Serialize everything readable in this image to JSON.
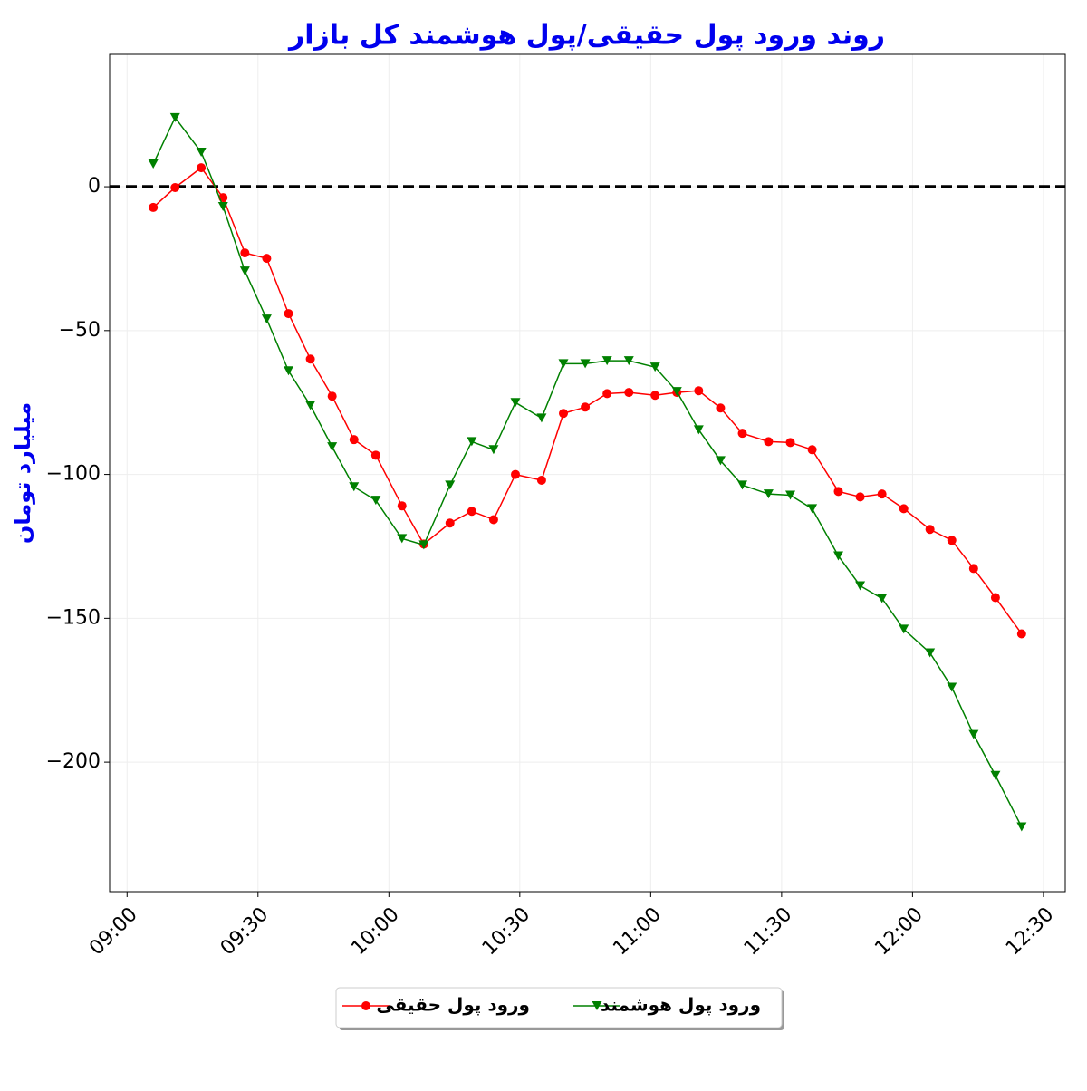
{
  "chart_data": {
    "type": "line",
    "title": "روند ورود پول حقیقی/پول هوشمند کل بازار",
    "y_label": "میلیارد تومان",
    "x": [
      "09:06",
      "09:11",
      "09:17",
      "09:22",
      "09:27",
      "09:32",
      "09:37",
      "09:42",
      "09:47",
      "09:52",
      "09:57",
      "10:03",
      "10:08",
      "10:14",
      "10:19",
      "10:24",
      "10:29",
      "10:35",
      "10:40",
      "10:45",
      "10:50",
      "10:55",
      "11:01",
      "11:06",
      "11:11",
      "11:16",
      "11:21",
      "11:27",
      "11:32",
      "11:37",
      "11:43",
      "11:48",
      "11:53",
      "11:58",
      "12:04",
      "12:09",
      "12:14",
      "12:19",
      "12:25"
    ],
    "series": [
      {
        "name": "ورود پول حقیقی",
        "color": "#ff0000",
        "marker": "circle",
        "values": [
          -7.2,
          -0.3,
          6.6,
          -3.8,
          -23,
          -24.9,
          -44.1,
          -59.9,
          -72.8,
          -87.9,
          -93.3,
          -110.9,
          -124.2,
          -116.9,
          -112.8,
          -115.7,
          -100,
          -102,
          -78.8,
          -76.6,
          -71.9,
          -71.5,
          -72.5,
          -71.5,
          -70.9,
          -76.9,
          -85.7,
          -88.6,
          -88.9,
          -91.4,
          -105.9,
          -107.8,
          -106.8,
          -111.9,
          -119.1,
          -122.9,
          -132.7,
          -142.8,
          -155.4
        ]
      },
      {
        "name": "ورود پول هوشمند",
        "color": "#008000",
        "marker": "triangle-down",
        "values": [
          7.9,
          24,
          12,
          -6.9,
          -29.3,
          -46,
          -64,
          -76,
          -90.4,
          -104.3,
          -109,
          -122.3,
          -124.5,
          -103.7,
          -88.6,
          -91.4,
          -75,
          -80.4,
          -61.5,
          -61.5,
          -60.5,
          -60.5,
          -62.7,
          -71.2,
          -84.5,
          -95.2,
          -103.7,
          -106.8,
          -107.2,
          -111.9,
          -128.3,
          -138.7,
          -143.1,
          -153.8,
          -162,
          -174,
          -190.4,
          -204.6,
          -222.5
        ]
      }
    ],
    "xlim": [
      "08:56",
      "12:35"
    ],
    "xticks": [
      "09:00",
      "09:30",
      "10:00",
      "10:30",
      "11:00",
      "11:30",
      "12:00",
      "12:30"
    ],
    "ylim": [
      -245,
      46
    ],
    "yticks": [
      {
        "value": -200,
        "label": "−200"
      },
      {
        "value": -150,
        "label": "−150"
      },
      {
        "value": -100,
        "label": "−100"
      },
      {
        "value": -50,
        "label": "−50"
      },
      0
    ],
    "hline": 0,
    "grid": true,
    "legend": "bottom"
  }
}
